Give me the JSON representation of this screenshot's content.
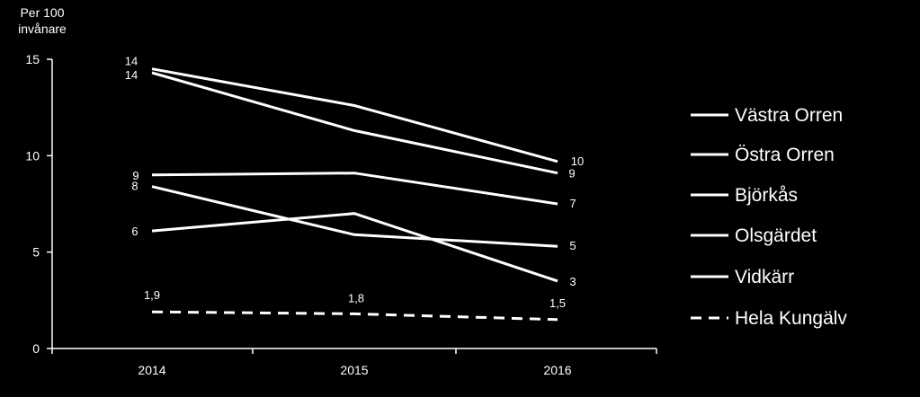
{
  "chart_data": {
    "type": "line",
    "ylabel": "Per 100 invånare",
    "ylabel_lines": [
      "Per 100",
      "invånare"
    ],
    "x": [
      "2014",
      "2015",
      "2016"
    ],
    "ylim": [
      0,
      15
    ],
    "yticks": [
      "0",
      "5",
      "10",
      "15"
    ],
    "series": [
      {
        "name": "Västra Orren",
        "values": [
          14.5,
          12.6,
          9.7
        ],
        "labels": [
          "14",
          "",
          "10"
        ],
        "dashed": false
      },
      {
        "name": "Östra Orren",
        "values": [
          14.3,
          11.3,
          9.1
        ],
        "labels": [
          "14",
          "",
          "9"
        ],
        "dashed": false
      },
      {
        "name": "Björkås",
        "values": [
          9.0,
          9.1,
          7.5
        ],
        "labels": [
          "9",
          "",
          "7"
        ],
        "dashed": false
      },
      {
        "name": "Olsgärdet",
        "values": [
          8.4,
          5.9,
          5.3
        ],
        "labels": [
          "8",
          "",
          "5"
        ],
        "dashed": false
      },
      {
        "name": "Vidkärr",
        "values": [
          6.1,
          7.0,
          3.5
        ],
        "labels": [
          "6",
          "",
          "3"
        ],
        "dashed": false
      },
      {
        "name": "Hela Kungälv",
        "values": [
          1.9,
          1.8,
          1.5
        ],
        "labels": [
          "1,9",
          "1,8",
          "1,5"
        ],
        "dashed": true
      }
    ],
    "legend_position": "right",
    "colors": {
      "background": "#000000",
      "line": "#ffffff"
    }
  }
}
